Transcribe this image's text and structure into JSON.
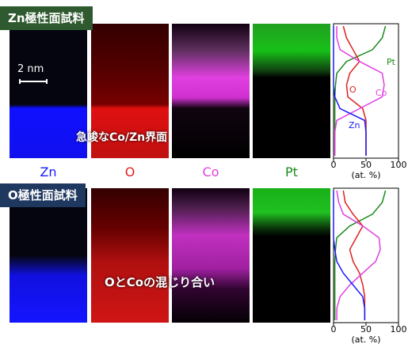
{
  "top_label": "Zn極性面試料",
  "scale_bar": "2 nm",
  "top_annotation": "急峻なCo/Zn界面",
  "element_labels": [
    "Zn",
    "O",
    "Co",
    "Pt"
  ],
  "bottom_label": "O極性面試料",
  "bottom_annotation": "OとCoの混じり合い",
  "chart_data": [
    {
      "type": "line",
      "categories": [
        null,
        null,
        null,
        null,
        null,
        null,
        null,
        null,
        null,
        null,
        null,
        null
      ],
      "xlim": [
        0,
        100
      ],
      "xticks": [
        0,
        50,
        100
      ],
      "xlabel": "(at. %)",
      "series": [
        {
          "name": "Pt",
          "color": "#1a8a1a",
          "values": [
            80,
            75,
            60,
            20,
            5,
            3,
            2,
            2,
            2,
            2,
            2,
            2
          ]
        },
        {
          "name": "O",
          "color": "#e02020",
          "values": [
            15,
            20,
            30,
            40,
            25,
            20,
            22,
            45,
            50,
            50,
            50,
            50
          ]
        },
        {
          "name": "Co",
          "color": "#e040e0",
          "values": [
            5,
            5,
            10,
            40,
            75,
            78,
            75,
            40,
            5,
            2,
            2,
            2
          ]
        },
        {
          "name": "Zn",
          "color": "#1a1aff",
          "values": [
            0,
            0,
            0,
            0,
            0,
            0,
            2,
            10,
            48,
            50,
            50,
            50
          ]
        }
      ]
    },
    {
      "type": "line",
      "categories": [
        null,
        null,
        null,
        null,
        null,
        null,
        null,
        null,
        null,
        null,
        null,
        null
      ],
      "xlim": [
        0,
        100
      ],
      "xticks": [
        0,
        50,
        100
      ],
      "xlabel": "(at. %)",
      "series": [
        {
          "color": "#1a8a1a",
          "values": [
            80,
            75,
            60,
            25,
            5,
            3,
            2,
            2,
            2,
            2,
            2,
            2
          ]
        },
        {
          "color": "#e02020",
          "values": [
            15,
            18,
            30,
            45,
            35,
            25,
            30,
            40,
            45,
            48,
            48,
            48
          ]
        },
        {
          "color": "#e040e0",
          "values": [
            5,
            8,
            15,
            45,
            70,
            72,
            65,
            45,
            25,
            10,
            5,
            5
          ]
        },
        {
          "color": "#1a1aff",
          "values": [
            0,
            0,
            0,
            0,
            0,
            2,
            5,
            15,
            30,
            45,
            48,
            48
          ]
        }
      ]
    }
  ]
}
